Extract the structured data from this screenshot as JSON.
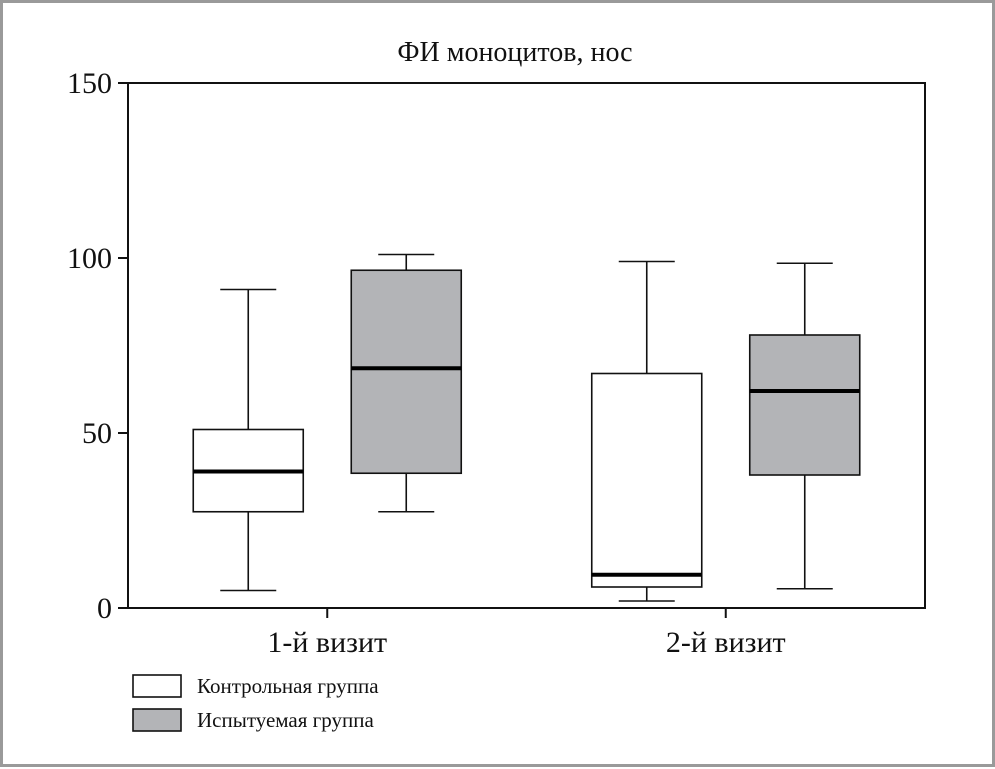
{
  "chart_data": {
    "type": "boxplot",
    "title": "ФИ моноцитов, нос",
    "xlabel": "",
    "ylabel": "",
    "ylim": [
      0,
      150
    ],
    "yticks": [
      0,
      50,
      100,
      150
    ],
    "categories": [
      "1-й визит",
      "2-й визит"
    ],
    "grid": false,
    "legend_position": "bottom-left",
    "series": [
      {
        "name": "Контрольная группа",
        "color": "#ffffff",
        "boxes": [
          {
            "min": 5,
            "q1": 27.5,
            "median": 39,
            "q3": 51,
            "max": 91
          },
          {
            "min": 2,
            "q1": 6,
            "median": 9.5,
            "q3": 67,
            "max": 99
          }
        ]
      },
      {
        "name": "Испытуемая группа",
        "color": "#b3b4b7",
        "boxes": [
          {
            "min": 27.5,
            "q1": 38.5,
            "median": 68.5,
            "q3": 96.5,
            "max": 101
          },
          {
            "min": 5.5,
            "q1": 38,
            "median": 62,
            "q3": 78,
            "max": 98.5
          }
        ]
      }
    ]
  }
}
